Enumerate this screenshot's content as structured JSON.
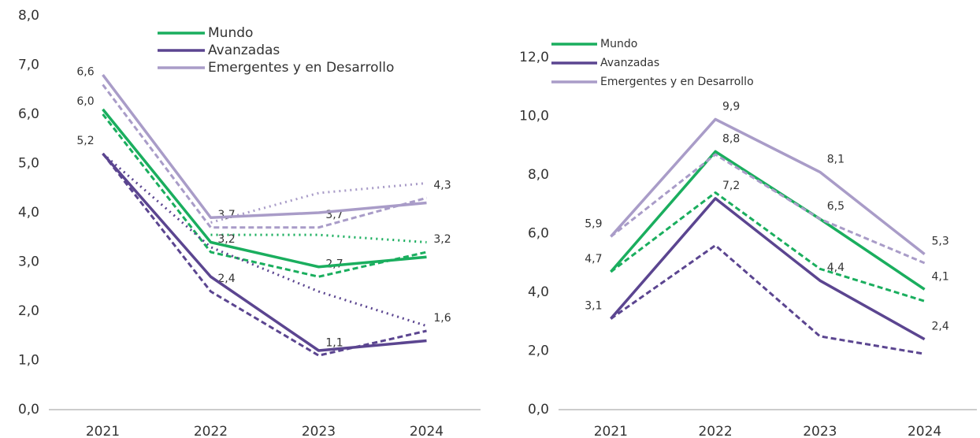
{
  "chart_data": [
    {
      "type": "line",
      "categories": [
        "2021",
        "2022",
        "2023",
        "2024"
      ],
      "ylim": [
        0,
        8
      ],
      "yticks": [
        {
          "value": 0,
          "label": "0,0"
        },
        {
          "value": 1,
          "label": "1,0"
        },
        {
          "value": 2,
          "label": "2,0"
        },
        {
          "value": 3,
          "label": "3,0"
        },
        {
          "value": 4,
          "label": "4,0"
        },
        {
          "value": 5,
          "label": "5,0"
        },
        {
          "value": 6,
          "label": "6,0"
        },
        {
          "value": 7,
          "label": "7,0"
        },
        {
          "value": 8,
          "label": "8,0"
        }
      ],
      "series": [
        {
          "name": "Mundo",
          "color": "#1aae5e",
          "values": [
            6.1,
            3.4,
            2.9,
            3.1
          ],
          "dashed_values": [
            6.0,
            3.2,
            2.7,
            3.2
          ],
          "dashed_value_labels": [
            "6,0",
            "3,2",
            "2,7",
            "3,2"
          ],
          "dotted_values": [
            null,
            3.55,
            3.55,
            3.4
          ]
        },
        {
          "name": "Avanzadas",
          "color": "#5b4590",
          "values": [
            5.2,
            2.7,
            1.2,
            1.4
          ],
          "dashed_values": [
            5.2,
            2.4,
            1.1,
            1.6
          ],
          "dashed_value_labels": [
            "5,2",
            "2,4",
            "1,1",
            "1,6"
          ],
          "dotted_values": [
            5.2,
            3.3,
            2.4,
            1.7
          ]
        },
        {
          "name": "Emergentes y en Desarrollo",
          "color": "#a99cc8",
          "values": [
            6.8,
            3.9,
            4.0,
            4.2
          ],
          "dashed_values": [
            6.6,
            3.7,
            3.7,
            4.3
          ],
          "dashed_value_labels": [
            "6,6",
            "3,7",
            "3,7",
            "4,3"
          ],
          "dotted_values": [
            null,
            3.8,
            4.4,
            4.6
          ]
        }
      ]
    },
    {
      "type": "line",
      "categories": [
        "2021",
        "2022",
        "2023",
        "2024"
      ],
      "ylim": [
        0,
        13
      ],
      "yticks": [
        {
          "value": 0,
          "label": "0,0"
        },
        {
          "value": 2,
          "label": "2,0"
        },
        {
          "value": 4,
          "label": "4,0"
        },
        {
          "value": 6,
          "label": "6,0"
        },
        {
          "value": 8,
          "label": "8,0"
        },
        {
          "value": 10,
          "label": "10,0"
        },
        {
          "value": 12,
          "label": "12,0"
        }
      ],
      "series": [
        {
          "name": "Mundo",
          "color": "#1aae5e",
          "values": [
            4.7,
            8.8,
            6.5,
            4.1
          ],
          "value_labels": [
            "4,7",
            "8,8",
            "6,5",
            "4,1"
          ],
          "dashed_values": [
            4.7,
            7.4,
            4.8,
            3.7
          ]
        },
        {
          "name": "Avanzadas",
          "color": "#5b4590",
          "values": [
            3.1,
            7.2,
            4.4,
            2.4
          ],
          "value_labels": [
            "3,1",
            "7,2",
            "4,4",
            "2,4"
          ],
          "dashed_values": [
            3.1,
            5.6,
            2.5,
            1.9
          ]
        },
        {
          "name": "Emergentes y en Desarrollo",
          "color": "#a99cc8",
          "values": [
            5.9,
            9.9,
            8.1,
            5.3
          ],
          "value_labels": [
            "5,9",
            "9,9",
            "8,1",
            "5,3"
          ],
          "dashed_values": [
            5.9,
            8.7,
            6.5,
            5.0
          ]
        }
      ]
    }
  ]
}
